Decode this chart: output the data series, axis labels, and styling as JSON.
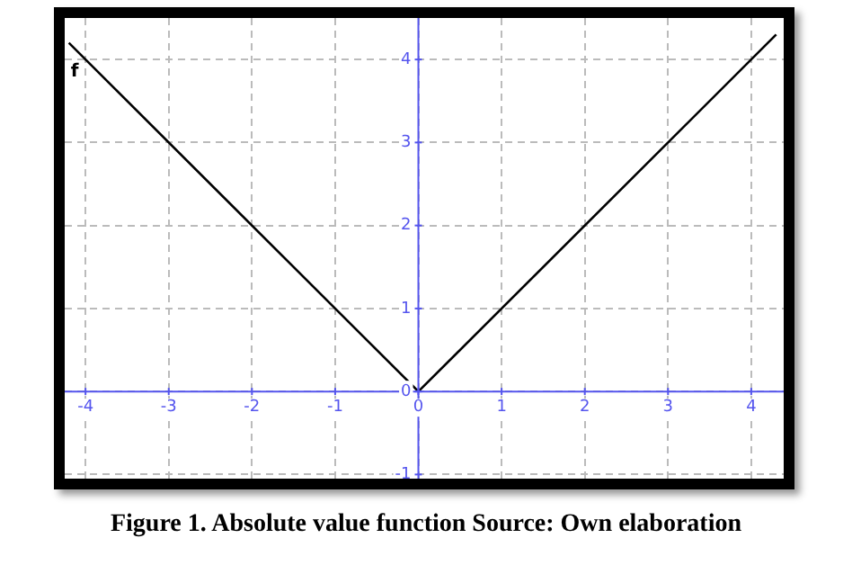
{
  "chart_data": {
    "type": "line",
    "title": "Figure 1. Absolute value function Source: Own elaboration",
    "x": [
      -4.2,
      0,
      4.3
    ],
    "series": [
      {
        "name": "f",
        "color": "#000000",
        "values": [
          4.2,
          0,
          4.3
        ]
      }
    ],
    "xlim": [
      -4.25,
      4.39
    ],
    "ylim": [
      -1.05,
      4.5
    ],
    "xticks": [
      -4,
      -3,
      -2,
      -1,
      0,
      1,
      2,
      3,
      4
    ],
    "yticks": [
      -1,
      0,
      1,
      2,
      3,
      4
    ],
    "grid": true,
    "line_style": "solid",
    "marker": "none",
    "legend": false
  }
}
